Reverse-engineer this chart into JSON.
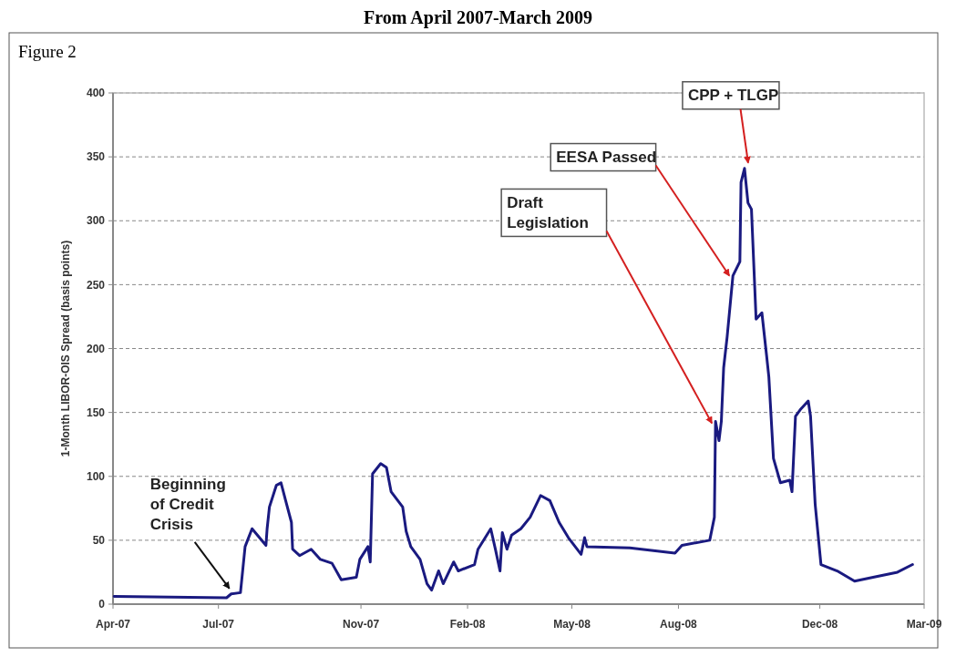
{
  "chart_data": {
    "type": "line",
    "title": "From April 2007-March 2009",
    "ylabel": "1-Month LIBOR-OIS Spread (basis points)",
    "annotations": [
      "Figure 2",
      {
        "text": "Beginning of Credit Crisis",
        "x": "2007-07-12",
        "y": 8
      },
      {
        "text": "Draft Legislation",
        "x": "2008-09-02",
        "y": 143
      },
      {
        "text": "EESA Passed",
        "x": "2008-09-17",
        "y": 257
      },
      {
        "text": "CPP + TLGP",
        "x": "2008-09-27",
        "y": 341
      }
    ],
    "xlim": [
      "2007-04-01",
      "2009-03-01"
    ],
    "xticks": [
      {
        "value": "2007-04-01",
        "label": "Apr-07"
      },
      {
        "value": "2007-07-01",
        "label": "Jul-07"
      },
      {
        "value": "2007-11-01",
        "label": "Nov-07"
      },
      {
        "value": "2008-02-01",
        "label": "Feb-08"
      },
      {
        "value": "2008-05-01",
        "label": "May-08"
      },
      {
        "value": "2008-08-01",
        "label": "Aug-08"
      },
      {
        "value": "2008-12-01",
        "label": "Dec-08"
      },
      {
        "value": "2009-03-01",
        "label": "Mar-09"
      }
    ],
    "ylim": [
      0,
      400
    ],
    "yticks": [
      0,
      50,
      100,
      150,
      200,
      250,
      300,
      350,
      400
    ],
    "grid": "y",
    "marker": "none",
    "line_style": "solid",
    "x": [
      "2007-04-02",
      "2007-07-08",
      "2007-07-12",
      "2007-07-20",
      "2007-07-24",
      "2007-07-30",
      "2007-08-11",
      "2007-08-12",
      "2007-08-14",
      "2007-08-20",
      "2007-08-24",
      "2007-08-28",
      "2007-09-02",
      "2007-09-03",
      "2007-09-09",
      "2007-09-19",
      "2007-09-27",
      "2007-10-07",
      "2007-10-15",
      "2007-10-28",
      "2007-10-31",
      "2007-11-07",
      "2007-11-09",
      "2007-11-11",
      "2007-11-18",
      "2007-11-23",
      "2007-11-27",
      "2007-12-07",
      "2007-12-10",
      "2007-12-14",
      "2007-12-22",
      "2007-12-28",
      "2008-01-01",
      "2008-01-07",
      "2008-01-11",
      "2008-01-20",
      "2008-01-24",
      "2008-02-07",
      "2008-02-10",
      "2008-02-21",
      "2008-02-25",
      "2008-02-29",
      "2008-03-02",
      "2008-03-06",
      "2008-03-10",
      "2008-03-18",
      "2008-03-26",
      "2008-04-04",
      "2008-04-12",
      "2008-04-20",
      "2008-04-28",
      "2008-05-09",
      "2008-05-12",
      "2008-05-14",
      "2008-06-20",
      "2008-07-29",
      "2008-08-04",
      "2008-08-28",
      "2008-09-01",
      "2008-09-02",
      "2008-09-05",
      "2008-09-07",
      "2008-09-09",
      "2008-09-12",
      "2008-09-17",
      "2008-09-23",
      "2008-09-24",
      "2008-09-27",
      "2008-09-30",
      "2008-10-03",
      "2008-10-07",
      "2008-10-12",
      "2008-10-16",
      "2008-10-18",
      "2008-10-22",
      "2008-10-28",
      "2008-11-05",
      "2008-11-07",
      "2008-11-10",
      "2008-11-14",
      "2008-11-21",
      "2008-11-23",
      "2008-11-27",
      "2008-12-02",
      "2008-12-16",
      "2008-12-31",
      "2009-01-16",
      "2009-02-06",
      "2009-02-19"
    ],
    "series": [
      {
        "color": "#1a1a80",
        "values": [
          6,
          5,
          8,
          9,
          45,
          59,
          46,
          59,
          76,
          93,
          95,
          81,
          64,
          43,
          38,
          43,
          35,
          32,
          19,
          21,
          35,
          45,
          33,
          102,
          110,
          107,
          88,
          76,
          57,
          45,
          35,
          16,
          11,
          26,
          16,
          33,
          26,
          31,
          43,
          59,
          43,
          26,
          56,
          43,
          54,
          59,
          68,
          85,
          81,
          64,
          52,
          39,
          52,
          45,
          44,
          40,
          46,
          50,
          68,
          143,
          128,
          143,
          185,
          209,
          257,
          268,
          330,
          341,
          314,
          309,
          223,
          228,
          195,
          178,
          114,
          95,
          97,
          88,
          147,
          152,
          159,
          147,
          78,
          31,
          26,
          18,
          21,
          25,
          31
        ]
      }
    ]
  }
}
